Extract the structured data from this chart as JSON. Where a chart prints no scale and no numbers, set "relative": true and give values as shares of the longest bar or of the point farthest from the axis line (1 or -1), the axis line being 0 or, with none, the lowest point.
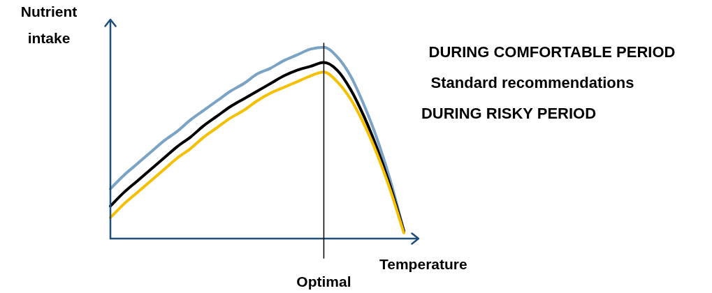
{
  "chart_data": {
    "type": "line",
    "xlabel": "Temperature",
    "ylabel": "Nutrient intake",
    "relative": true,
    "marker": "none",
    "categories": [
      null,
      null,
      null,
      null,
      null,
      null,
      null,
      null,
      null,
      null,
      null,
      null,
      null,
      null,
      null,
      null,
      null,
      null,
      null,
      null,
      null,
      null,
      null
    ],
    "series": [
      {
        "name": "DURING COMFORTABLE PERIOD",
        "color": "#7ba3c4",
        "values": [
          0.26,
          0.33,
          0.39,
          0.45,
          0.51,
          0.56,
          0.62,
          0.67,
          0.72,
          0.77,
          0.81,
          0.86,
          0.89,
          0.93,
          0.96,
          0.99,
          1,
          0.95,
          0.85,
          0.7,
          0.52,
          0.3,
          0.04
        ]
      },
      {
        "name": "Standard recommendations",
        "color": "#000000",
        "values": [
          0.17,
          0.24,
          0.3,
          0.36,
          0.42,
          0.48,
          0.53,
          0.59,
          0.64,
          0.69,
          0.73,
          0.77,
          0.81,
          0.85,
          0.88,
          0.9,
          0.92,
          0.88,
          0.78,
          0.64,
          0.47,
          0.27,
          0.04
        ]
      },
      {
        "name": "DURING RISKY PERIOD",
        "color": "#f5c000",
        "values": [
          0.11,
          0.18,
          0.24,
          0.3,
          0.36,
          0.42,
          0.47,
          0.53,
          0.58,
          0.63,
          0.67,
          0.72,
          0.76,
          0.79,
          0.82,
          0.85,
          0.87,
          0.82,
          0.73,
          0.6,
          0.44,
          0.25,
          0.03
        ]
      }
    ],
    "annotations": [
      "Optimal"
    ]
  }
}
